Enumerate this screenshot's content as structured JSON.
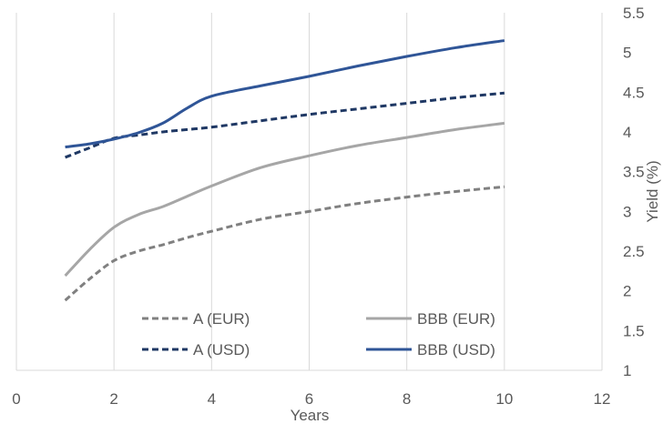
{
  "chart_data": {
    "type": "line",
    "title": "",
    "xlabel": "Years",
    "ylabel": "Yield (%)",
    "xlim": [
      0,
      12
    ],
    "ylim": [
      1,
      5.5
    ],
    "x_ticks": [
      "0",
      "2",
      "4",
      "6",
      "8",
      "10",
      "12"
    ],
    "y_ticks": [
      "1",
      "1.5",
      "2",
      "2.5",
      "3",
      "3.5",
      "4",
      "4.5",
      "5",
      "5.5"
    ],
    "y_axis_side": "right",
    "grid": "vertical",
    "legend_position": "bottom-center-inside",
    "series": [
      {
        "name": "A (EUR)",
        "color": "#808080",
        "dash": "dashed",
        "x": [
          1,
          1.5,
          2,
          2.5,
          3,
          3.5,
          4,
          5,
          6,
          7,
          8,
          9,
          10
        ],
        "y": [
          1.88,
          2.15,
          2.38,
          2.5,
          2.58,
          2.67,
          2.75,
          2.9,
          3.0,
          3.1,
          3.18,
          3.25,
          3.31
        ]
      },
      {
        "name": "BBB (EUR)",
        "color": "#a6a6a6",
        "dash": "solid",
        "x": [
          1,
          1.5,
          2,
          2.5,
          3,
          3.5,
          4,
          5,
          6,
          7,
          8,
          9,
          10
        ],
        "y": [
          2.19,
          2.52,
          2.8,
          2.96,
          3.06,
          3.19,
          3.32,
          3.55,
          3.7,
          3.83,
          3.93,
          4.03,
          4.11
        ]
      },
      {
        "name": "A (USD)",
        "color": "#1f3864",
        "dash": "dashed",
        "x": [
          1,
          1.5,
          2,
          2.5,
          3,
          3.5,
          4,
          5,
          6,
          7,
          8,
          9,
          10
        ],
        "y": [
          3.68,
          3.8,
          3.92,
          3.96,
          4.0,
          4.03,
          4.06,
          4.14,
          4.22,
          4.29,
          4.36,
          4.43,
          4.49
        ]
      },
      {
        "name": "BBB (USD)",
        "color": "#2f5597",
        "dash": "solid",
        "x": [
          1,
          1.5,
          2,
          2.5,
          3,
          3.5,
          4,
          5,
          6,
          7,
          8,
          9,
          10
        ],
        "y": [
          3.81,
          3.85,
          3.91,
          3.99,
          4.11,
          4.3,
          4.45,
          4.58,
          4.7,
          4.83,
          4.95,
          5.06,
          5.15
        ]
      }
    ]
  }
}
